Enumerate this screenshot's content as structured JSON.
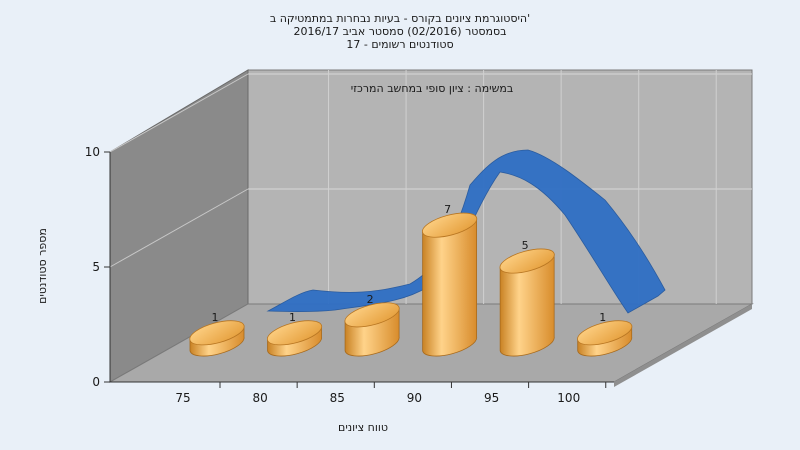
{
  "chart_data": {
    "type": "bar",
    "title_lines": [
      "היסטוגרמת ציונים בקורס - בעיות נבחרות במתמטיקה ב'",
      "בסמסטר  (02/2016)  סמסטר אביב 2016/17",
      "סטודנטים רשומים - 17"
    ],
    "subtitle": "במשימה : ציון סופי במחשב המרכזי",
    "xlabel": "טווח ציונים",
    "ylabel": "מספר סטודנטים",
    "categories": [
      "75",
      "80",
      "85",
      "90",
      "95",
      "100"
    ],
    "values": [
      1,
      1,
      2,
      7,
      5,
      1
    ],
    "value_labels": [
      "1",
      "1",
      "2",
      "7",
      "5",
      "1"
    ],
    "y_ticks": [
      "0",
      "5",
      "10"
    ],
    "ylim": [
      0,
      10
    ],
    "bar_color": "#e8a23c",
    "curve_color": "#2f6fc4",
    "wall_color": "#b4b4b4",
    "side_wall_color": "#8a8a8a",
    "floor_color": "#a9a9a9",
    "background_color": "#e9f0f8",
    "grid": true
  }
}
